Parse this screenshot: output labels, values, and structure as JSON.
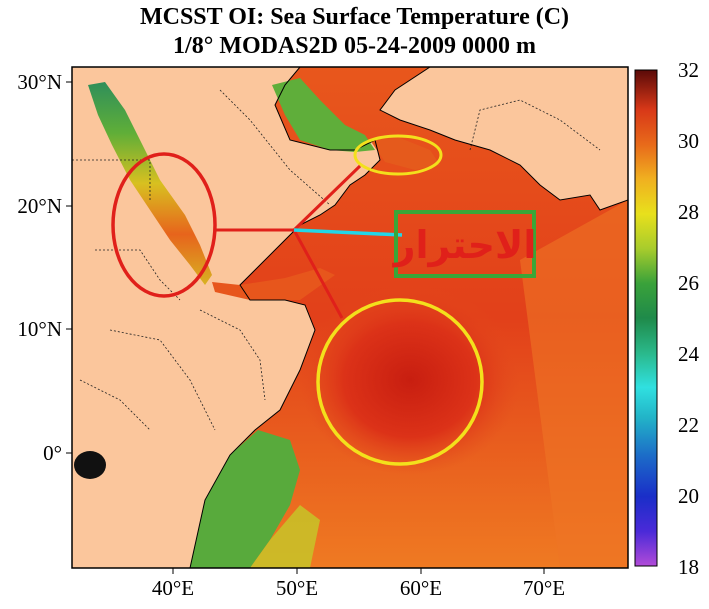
{
  "title": {
    "line1": "MCSST OI:  Sea Surface Temperature (C)",
    "line2": "1/8° MODAS2D 05-24-2009 0000 m"
  },
  "map": {
    "lat_labels": [
      "30°N",
      "20°N",
      "10°N",
      "0°"
    ],
    "lon_labels": [
      "40°E",
      "50°E",
      "60°E",
      "70°E"
    ],
    "annotation_text": "الاحترار",
    "colors": {
      "land": "#fbc69c",
      "sea_hot": "#dc3218",
      "sea_warm": "#ee6a1e",
      "sea_mild": "#f4a72a",
      "sea_cool": "#4fae3a",
      "marker_red": "#e0201a",
      "marker_yellow": "#f3e01c",
      "marker_green": "#3aa638",
      "marker_cyan": "#22d6e6"
    }
  },
  "colorbar": {
    "labels": [
      "32",
      "30",
      "28",
      "26",
      "24",
      "22",
      "20",
      "18"
    ],
    "min": 18,
    "max": 32
  }
}
